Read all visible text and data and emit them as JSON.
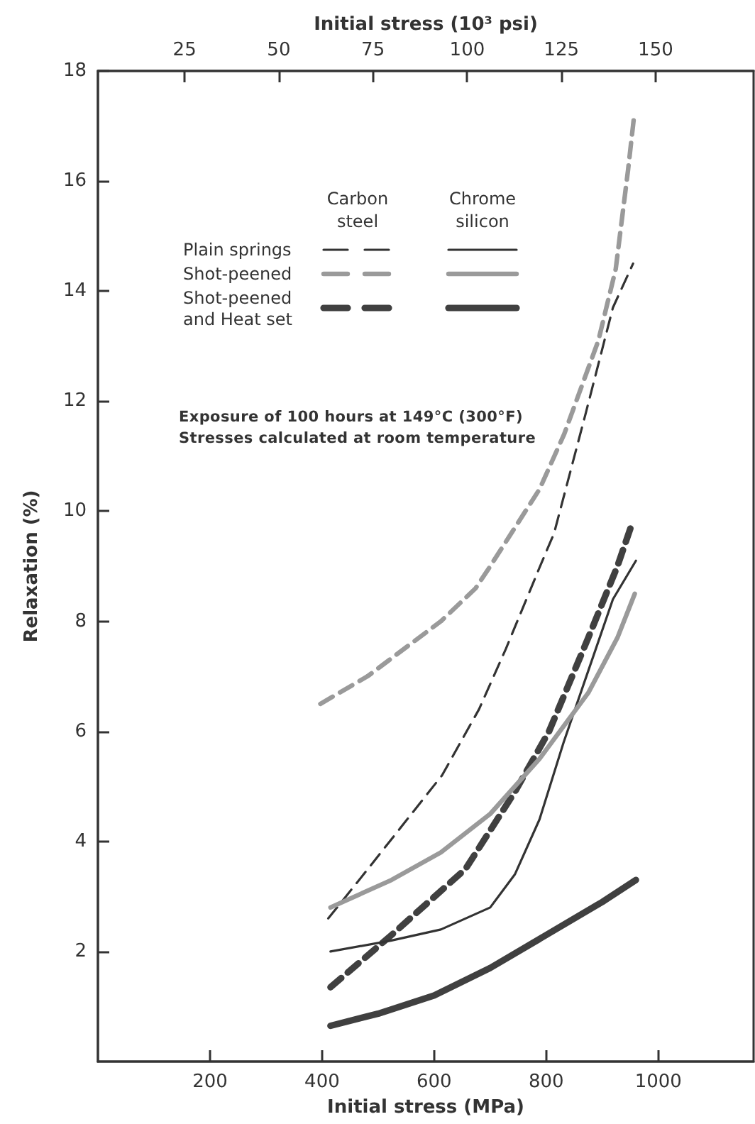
{
  "chart_data": {
    "type": "line",
    "xlabel": "Initial stress (MPa)",
    "x2label": "Initial stress (10³ psi)",
    "ylabel": "Relaxation (%)",
    "xlim": [
      0,
      1170
    ],
    "xticks": [
      200,
      400,
      600,
      800,
      1000
    ],
    "x2lim": [
      2,
      176
    ],
    "x2ticks": [
      25,
      50,
      75,
      100,
      125,
      150
    ],
    "ylim": [
      0,
      18
    ],
    "yticks": [
      2,
      4,
      6,
      8,
      10,
      12,
      14,
      16,
      18
    ],
    "grid": false,
    "marker": "none",
    "legend": "top left",
    "annotations": [
      "Carbon steel",
      "Chrome silicon",
      "Exposure of 100 hours at 149°C (300°F)",
      "Stresses calculated at room temperature"
    ],
    "series": [
      {
        "name": "Plain springs",
        "color": "#333333",
        "line_style": "dashed",
        "x": [
          411,
          474,
          544,
          614,
          680,
          728,
          789,
          814,
          871,
          919,
          955
        ],
        "values": [
          2.6,
          3.4,
          4.3,
          5.2,
          6.4,
          7.5,
          9.0,
          9.6,
          11.8,
          13.7,
          14.5
        ]
      },
      {
        "name": "Shot-peened",
        "color": "#9a9a9a",
        "line_style": "dashed",
        "x": [
          397,
          481,
          612,
          674,
          700,
          788,
          832,
          893,
          924,
          946,
          957
        ],
        "values": [
          6.5,
          7.0,
          8.0,
          8.6,
          9.0,
          10.4,
          11.4,
          13.1,
          14.4,
          16.2,
          17.2
        ]
      },
      {
        "name": "Shot-peened and Heat set",
        "color": "#404040",
        "line_style": "dashed",
        "x": [
          415,
          524,
          656,
          744,
          805,
          875,
          927,
          954
        ],
        "values": [
          1.35,
          2.3,
          3.5,
          4.9,
          6.0,
          7.7,
          9.0,
          9.8
        ]
      },
      {
        "color": "#333333",
        "line_style": "solid",
        "x": [
          415,
          524,
          612,
          700,
          744,
          788,
          831,
          875,
          919,
          960
        ],
        "values": [
          2.0,
          2.2,
          2.4,
          2.8,
          3.4,
          4.4,
          5.8,
          7.1,
          8.4,
          9.1
        ]
      },
      {
        "color": "#9a9a9a",
        "line_style": "solid",
        "x": [
          415,
          524,
          612,
          700,
          788,
          875,
          927,
          958
        ],
        "values": [
          2.8,
          3.3,
          3.8,
          4.5,
          5.5,
          6.7,
          7.7,
          8.5
        ]
      },
      {
        "color": "#404040",
        "line_style": "solid",
        "x": [
          415,
          500,
          600,
          700,
          800,
          900,
          960
        ],
        "values": [
          0.65,
          0.87,
          1.2,
          1.7,
          2.3,
          2.9,
          3.3
        ]
      }
    ]
  }
}
